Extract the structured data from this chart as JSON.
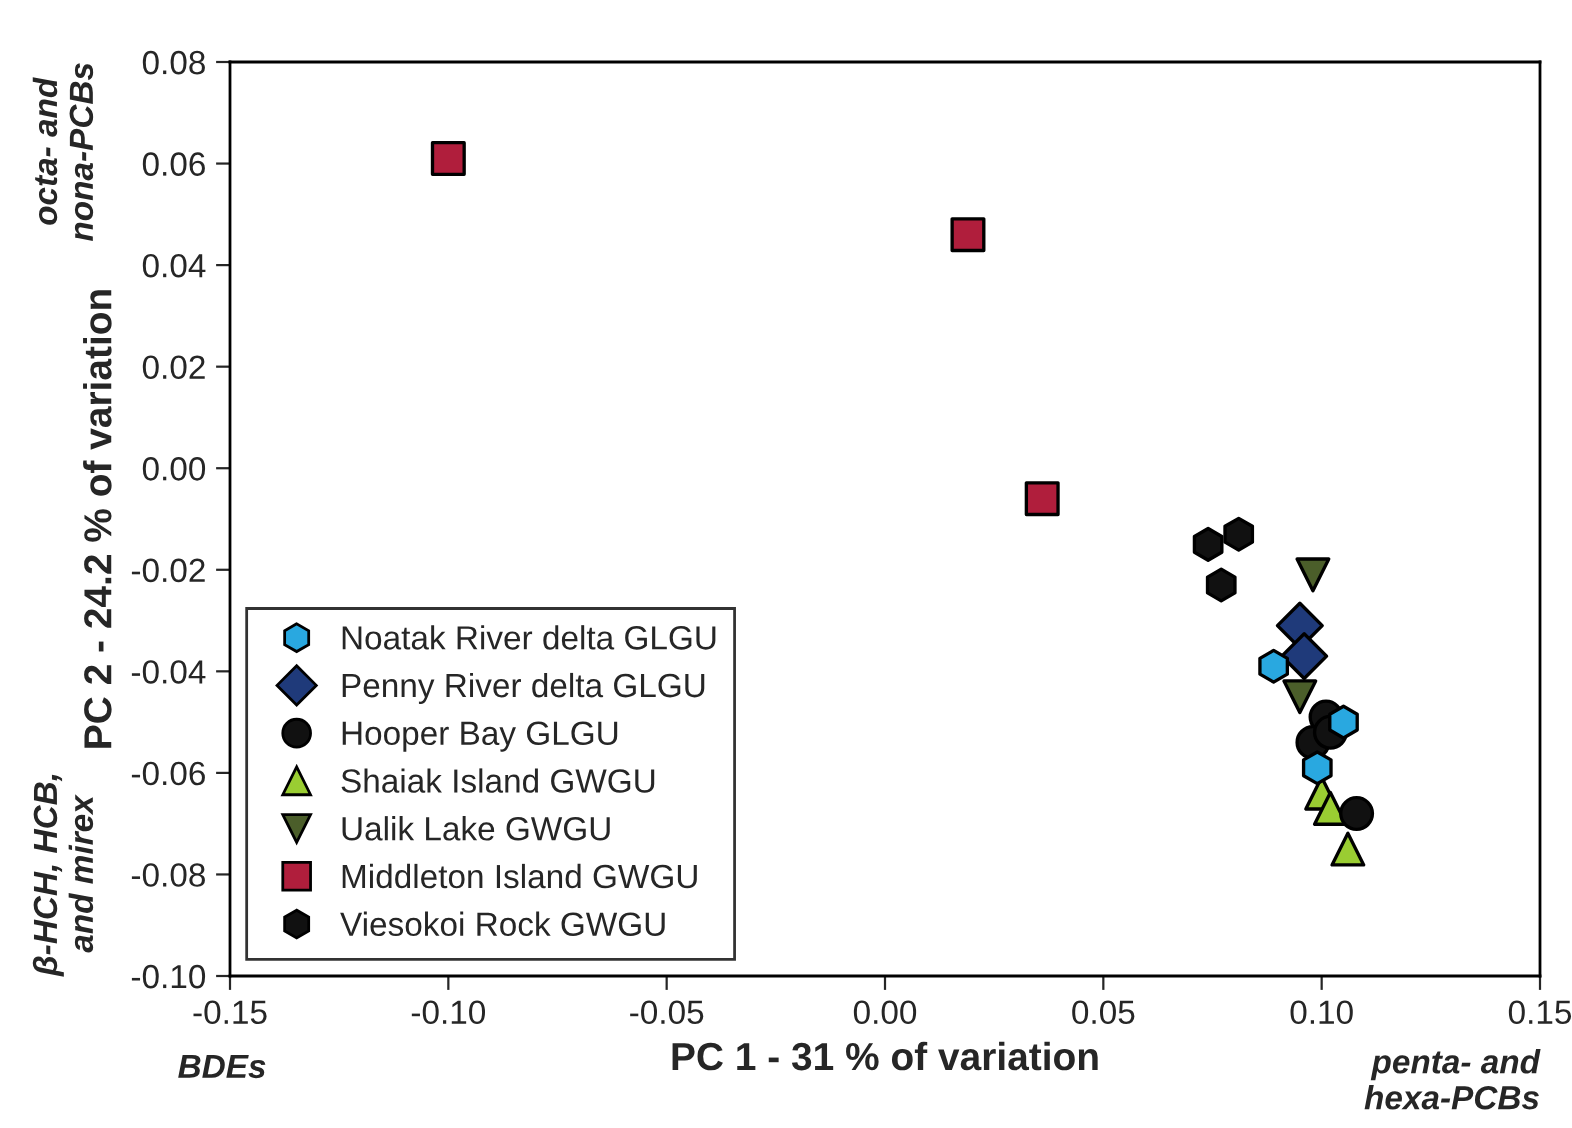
{
  "chart_data": {
    "type": "scatter",
    "xlabel": "PC 1 - 31 % of variation",
    "ylabel": "PC 2 - 24.2 % of variation",
    "xlim": [
      -0.15,
      0.15
    ],
    "xticks": [
      {
        "value": -0.15,
        "label": "-0.15"
      },
      {
        "value": -0.1,
        "label": "-0.10"
      },
      {
        "value": -0.05,
        "label": "-0.05"
      },
      {
        "value": 0,
        "label": "0.00"
      },
      {
        "value": 0.05,
        "label": "0.05"
      },
      {
        "value": 0.1,
        "label": "0.10"
      },
      {
        "value": 0.15,
        "label": "0.15"
      }
    ],
    "ylim": [
      -0.1,
      0.08
    ],
    "yticks": [
      {
        "value": -0.1,
        "label": "-0.10"
      },
      {
        "value": -0.08,
        "label": "-0.08"
      },
      {
        "value": -0.06,
        "label": "-0.06"
      },
      {
        "value": -0.04,
        "label": "-0.04"
      },
      {
        "value": -0.02,
        "label": "-0.02"
      },
      {
        "value": 0,
        "label": "0.00"
      },
      {
        "value": 0.02,
        "label": "0.02"
      },
      {
        "value": 0.04,
        "label": "0.04"
      },
      {
        "value": 0.06,
        "label": "0.06"
      },
      {
        "value": 0.08,
        "label": "0.08"
      }
    ],
    "grid": false,
    "legend": "bottom left",
    "series": [
      {
        "name": "Noatak River delta GLGU",
        "color": "#29a8e0",
        "x": [
          0.089,
          0.105,
          0.099
        ],
        "values": [
          -0.039,
          -0.05,
          -0.059
        ]
      },
      {
        "name": "Penny River delta GLGU",
        "color": "#1f3a7a",
        "marker": "diamond",
        "x": [
          0.095,
          0.096
        ],
        "values": [
          -0.031,
          -0.037
        ]
      },
      {
        "name": "Hooper Bay GLGU",
        "color": "#111111",
        "marker": "circle",
        "x": [
          0.101,
          0.098,
          0.102,
          0.108
        ],
        "values": [
          -0.049,
          -0.054,
          -0.052,
          -0.068
        ]
      },
      {
        "name": "Shaiak Island GWGU",
        "color": "#9acd32",
        "marker": "triangle",
        "x": [
          0.1,
          0.102,
          0.106
        ],
        "values": [
          -0.064,
          -0.067,
          -0.075
        ]
      },
      {
        "name": "Ualik Lake GWGU",
        "color": "#4b5e2a",
        "marker": "triangle_down",
        "x": [
          0.098,
          0.095
        ],
        "values": [
          -0.021,
          -0.045
        ]
      },
      {
        "name": "Middleton Island GWGU",
        "color": "#b01e3c",
        "marker": "square",
        "x": [
          -0.1,
          0.019,
          0.036
        ],
        "values": [
          0.061,
          0.046,
          -0.006
        ]
      },
      {
        "name": "Viesokoi Rock GWGU",
        "color": "#111111",
        "x": [
          0.074,
          0.081,
          0.077
        ],
        "values": [
          -0.015,
          -0.013,
          -0.023
        ]
      }
    ],
    "annotations": [
      "BDEs",
      "penta- and\nhexa-PCBs",
      "octa- and\nnona-PCBs",
      "β-HCH, HCB,\nand mirex"
    ]
  }
}
